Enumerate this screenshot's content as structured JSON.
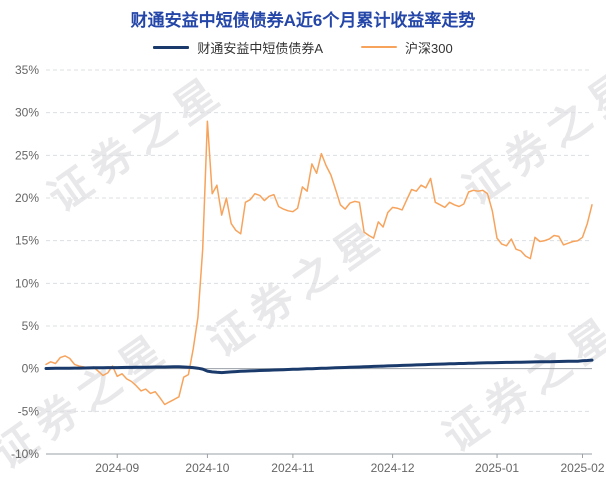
{
  "colors": {
    "title": "#2446a8",
    "fund_line": "#1a3a6b",
    "index_line": "#f7a35c",
    "axis": "#9aa0a6",
    "grid": "#dcdfe3"
  },
  "chart_data": {
    "type": "line",
    "title": "财通安益中短债债券A近6个月累计收益率走势",
    "xlabel": "",
    "ylabel": "",
    "ylim": [
      -10,
      35
    ],
    "yticks": [
      -10,
      -5,
      0,
      5,
      10,
      15,
      20,
      25,
      30,
      35
    ],
    "ytick_suffix": "%",
    "grid": "horizontal-dashed",
    "legend_position": "top",
    "watermark_text": "证券之星",
    "xtick_labels": [
      "2024-09",
      "2024-10",
      "2024-11",
      "2024-12",
      "2025-01",
      "2025-02"
    ],
    "x": [
      "2024-08-12",
      "2024-08-13",
      "2024-08-14",
      "2024-08-15",
      "2024-08-16",
      "2024-08-19",
      "2024-08-20",
      "2024-08-21",
      "2024-08-22",
      "2024-08-23",
      "2024-08-26",
      "2024-08-27",
      "2024-08-28",
      "2024-08-29",
      "2024-08-30",
      "2024-09-02",
      "2024-09-03",
      "2024-09-04",
      "2024-09-05",
      "2024-09-06",
      "2024-09-09",
      "2024-09-10",
      "2024-09-11",
      "2024-09-12",
      "2024-09-13",
      "2024-09-18",
      "2024-09-19",
      "2024-09-20",
      "2024-09-23",
      "2024-09-24",
      "2024-09-25",
      "2024-09-26",
      "2024-09-27",
      "2024-09-30",
      "2024-10-08",
      "2024-10-09",
      "2024-10-10",
      "2024-10-11",
      "2024-10-14",
      "2024-10-15",
      "2024-10-16",
      "2024-10-17",
      "2024-10-18",
      "2024-10-21",
      "2024-10-22",
      "2024-10-23",
      "2024-10-24",
      "2024-10-25",
      "2024-10-28",
      "2024-10-29",
      "2024-10-30",
      "2024-10-31",
      "2024-11-01",
      "2024-11-04",
      "2024-11-05",
      "2024-11-06",
      "2024-11-07",
      "2024-11-08",
      "2024-11-11",
      "2024-11-12",
      "2024-11-13",
      "2024-11-14",
      "2024-11-15",
      "2024-11-18",
      "2024-11-19",
      "2024-11-20",
      "2024-11-21",
      "2024-11-22",
      "2024-11-25",
      "2024-11-26",
      "2024-11-27",
      "2024-11-28",
      "2024-11-29",
      "2024-12-02",
      "2024-12-03",
      "2024-12-04",
      "2024-12-05",
      "2024-12-06",
      "2024-12-09",
      "2024-12-10",
      "2024-12-11",
      "2024-12-12",
      "2024-12-13",
      "2024-12-16",
      "2024-12-17",
      "2024-12-18",
      "2024-12-19",
      "2024-12-20",
      "2024-12-23",
      "2024-12-24",
      "2024-12-25",
      "2024-12-26",
      "2024-12-27",
      "2024-12-30",
      "2024-12-31",
      "2025-01-02",
      "2025-01-03",
      "2025-01-06",
      "2025-01-07",
      "2025-01-08",
      "2025-01-09",
      "2025-01-10",
      "2025-01-13",
      "2025-01-14",
      "2025-01-15",
      "2025-01-16",
      "2025-01-17",
      "2025-01-20",
      "2025-01-21",
      "2025-01-22",
      "2025-01-23",
      "2025-01-24",
      "2025-01-27",
      "2025-02-05",
      "2025-02-06",
      "2025-02-07"
    ],
    "series": [
      {
        "id": "fund",
        "name": "财通安益中短债债券A",
        "color": "#1a3a6b",
        "width": 3,
        "values": [
          0.02,
          0.03,
          0.04,
          0.05,
          0.05,
          0.06,
          0.07,
          0.07,
          0.08,
          0.09,
          0.1,
          0.1,
          0.11,
          0.12,
          0.13,
          0.13,
          0.14,
          0.15,
          0.15,
          0.16,
          0.17,
          0.17,
          0.18,
          0.19,
          0.19,
          0.2,
          0.21,
          0.22,
          0.22,
          0.2,
          0.17,
          0.12,
          0.05,
          -0.05,
          -0.28,
          -0.38,
          -0.43,
          -0.46,
          -0.42,
          -0.38,
          -0.34,
          -0.31,
          -0.28,
          -0.26,
          -0.24,
          -0.22,
          -0.2,
          -0.18,
          -0.16,
          -0.14,
          -0.12,
          -0.1,
          -0.08,
          -0.06,
          -0.04,
          -0.02,
          0.0,
          0.02,
          0.04,
          0.06,
          0.08,
          0.1,
          0.12,
          0.14,
          0.16,
          0.18,
          0.2,
          0.22,
          0.24,
          0.26,
          0.28,
          0.3,
          0.32,
          0.34,
          0.36,
          0.38,
          0.4,
          0.42,
          0.44,
          0.46,
          0.48,
          0.5,
          0.52,
          0.54,
          0.55,
          0.57,
          0.58,
          0.6,
          0.61,
          0.63,
          0.64,
          0.66,
          0.67,
          0.69,
          0.7,
          0.71,
          0.72,
          0.73,
          0.74,
          0.75,
          0.76,
          0.77,
          0.78,
          0.79,
          0.8,
          0.81,
          0.82,
          0.83,
          0.84,
          0.85,
          0.86,
          0.87,
          0.88,
          0.93,
          0.96,
          1.0
        ]
      },
      {
        "id": "csi300",
        "name": "沪深300",
        "color": "#f7a35c",
        "width": 1.5,
        "values": [
          0.5,
          0.8,
          0.6,
          1.3,
          1.5,
          1.2,
          0.5,
          0.3,
          0.2,
          0.0,
          0.2,
          -0.3,
          -0.8,
          -0.5,
          0.3,
          -0.9,
          -0.6,
          -1.2,
          -1.5,
          -2.0,
          -2.6,
          -2.4,
          -2.9,
          -2.7,
          -3.4,
          -4.2,
          -3.9,
          -3.6,
          -3.3,
          -1.0,
          -0.7,
          2.3,
          6.0,
          14.0,
          29.0,
          20.5,
          21.5,
          18.0,
          20.0,
          17.0,
          16.2,
          15.8,
          19.5,
          19.8,
          20.5,
          20.3,
          19.7,
          20.2,
          20.4,
          19.0,
          18.7,
          18.5,
          18.4,
          18.8,
          21.3,
          20.8,
          24.0,
          22.9,
          25.2,
          23.8,
          22.7,
          21.0,
          19.2,
          18.7,
          19.4,
          19.6,
          19.5,
          16.0,
          15.6,
          15.3,
          17.2,
          16.6,
          18.3,
          18.9,
          18.8,
          18.6,
          19.8,
          21.0,
          20.8,
          21.5,
          21.2,
          22.3,
          19.5,
          19.2,
          18.9,
          19.5,
          19.2,
          19.0,
          19.3,
          20.7,
          20.9,
          20.8,
          20.9,
          20.5,
          18.5,
          15.3,
          14.6,
          14.4,
          15.2,
          14.0,
          13.8,
          13.2,
          12.9,
          15.4,
          14.9,
          15.0,
          15.2,
          15.6,
          15.5,
          14.5,
          14.7,
          14.9,
          15.0,
          15.4,
          17.0,
          19.2
        ]
      }
    ]
  }
}
